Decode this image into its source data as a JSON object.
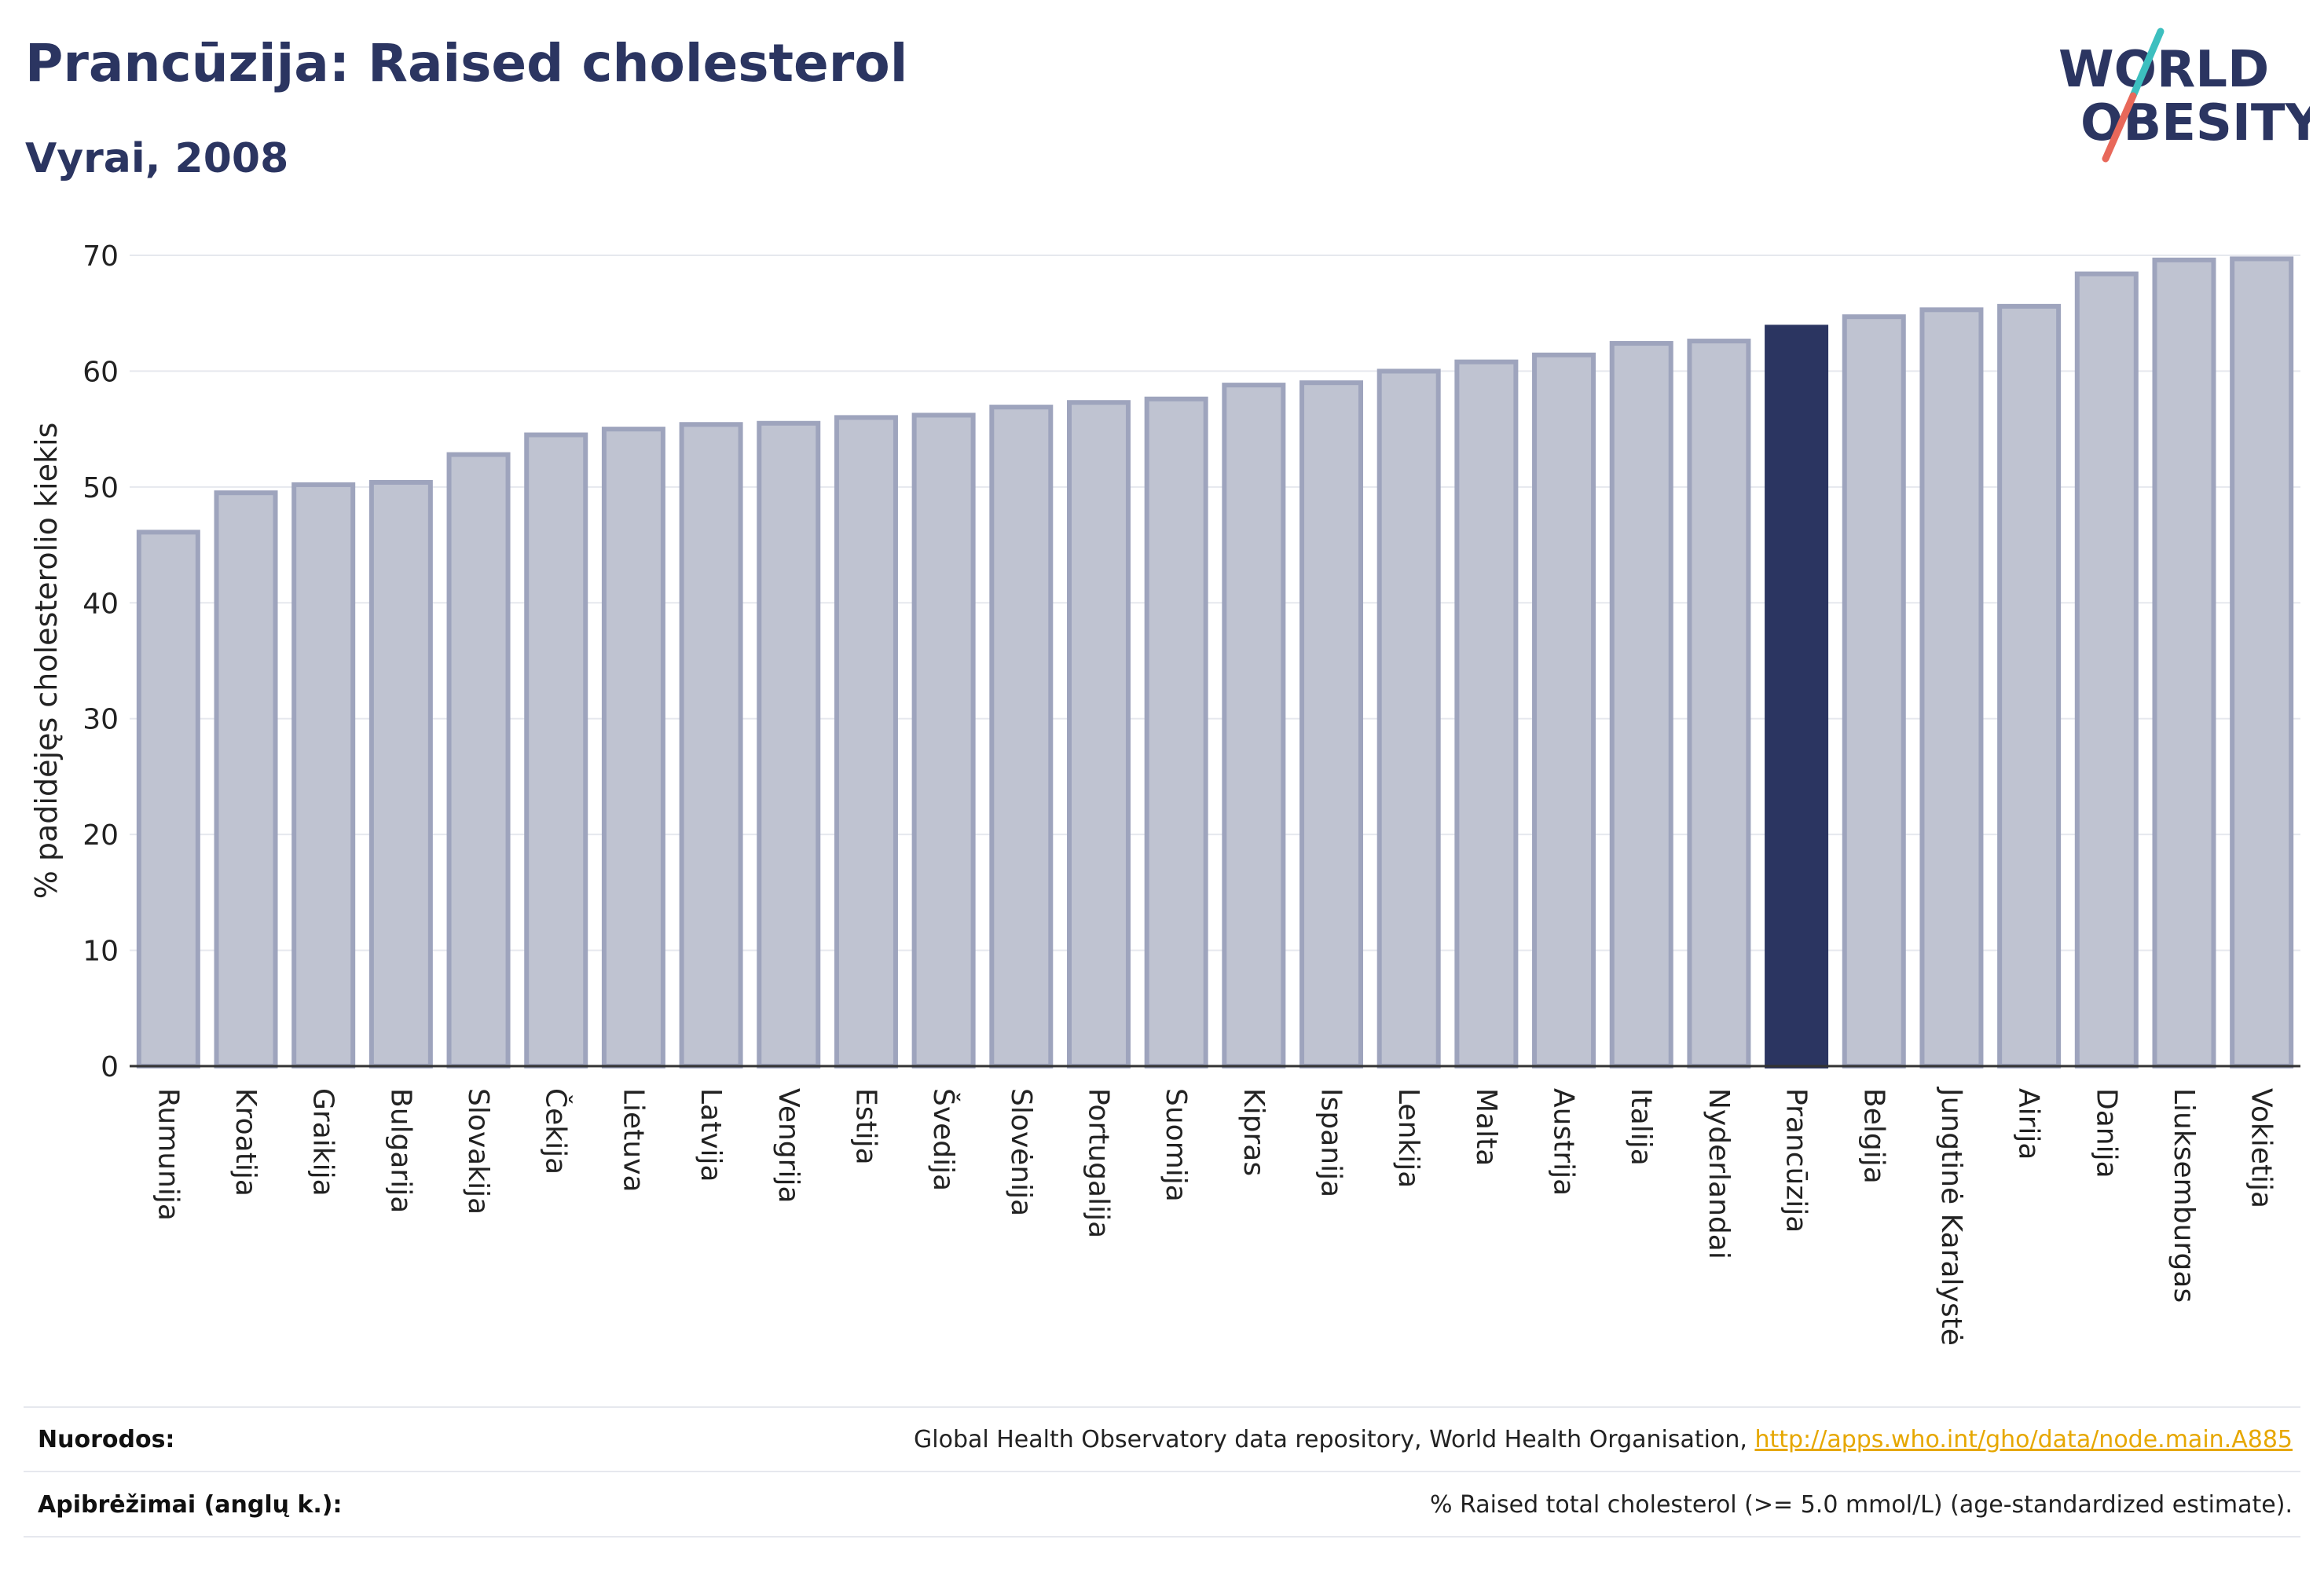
{
  "header": {
    "title": "Prancūzija: Raised cholesterol",
    "subtitle": "Vyrai, 2008"
  },
  "logo": {
    "line1": "WORLD",
    "line2": "OBESITY",
    "accent_teal": "#3dbfbf",
    "accent_red": "#e8685a",
    "text_color": "#2b3561"
  },
  "colors": {
    "bar": "#bfc3d1",
    "bar_border": "#9ea4bd",
    "highlight": "#2b3561",
    "grid": "#e6e8ee",
    "axis": "#333333"
  },
  "chart_data": {
    "type": "bar",
    "ylabel": "% padidėjęs cholesterolio kiekis",
    "ylim": [
      0,
      70
    ],
    "yticks": [
      0,
      10,
      20,
      30,
      40,
      50,
      60,
      70
    ],
    "grid": true,
    "highlight": "Prancūzija",
    "categories": [
      "Rumunija",
      "Kroatija",
      "Graikija",
      "Bulgarija",
      "Slovakija",
      "Čekija",
      "Lietuva",
      "Latvija",
      "Vengrija",
      "Estija",
      "Švedija",
      "Slovėnija",
      "Portugalija",
      "Suomija",
      "Kipras",
      "Ispanija",
      "Lenkija",
      "Malta",
      "Austrija",
      "Italija",
      "Nyderlandai",
      "Prancūzija",
      "Belgija",
      "Jungtinė Karalystė",
      "Airija",
      "Danija",
      "Liuksemburgas",
      "Vokietija"
    ],
    "values": [
      46.1,
      49.5,
      50.2,
      50.4,
      52.8,
      54.5,
      55.0,
      55.4,
      55.5,
      56.0,
      56.2,
      56.9,
      57.3,
      57.6,
      58.8,
      59.0,
      60.0,
      60.8,
      61.4,
      62.4,
      62.6,
      63.8,
      64.7,
      65.3,
      65.6,
      68.4,
      69.6,
      69.7
    ]
  },
  "footer": {
    "sources_label": "Nuorodos:",
    "sources_text": "Global Health Observatory data repository, World Health Organisation, ",
    "sources_link": "http://apps.who.int/gho/data/node.main.A885",
    "definitions_label": "Apibrėžimai (anglų k.):",
    "definitions_text": "% Raised total cholesterol (>= 5.0 mmol/L) (age-standardized estimate)."
  }
}
